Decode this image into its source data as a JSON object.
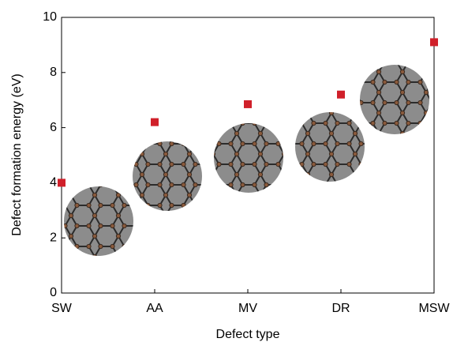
{
  "chart_data": {
    "type": "scatter",
    "x_label": "Defect type",
    "y_label": "Defect formation energy (eV)",
    "categories": [
      "SW",
      "AA",
      "MV",
      "DR",
      "MSW"
    ],
    "values": [
      4.0,
      6.2,
      6.85,
      7.2,
      9.1
    ],
    "color": "#d0202a",
    "ylim": [
      0,
      10
    ],
    "yticks": [
      0,
      2,
      4,
      6,
      8,
      10
    ]
  }
}
